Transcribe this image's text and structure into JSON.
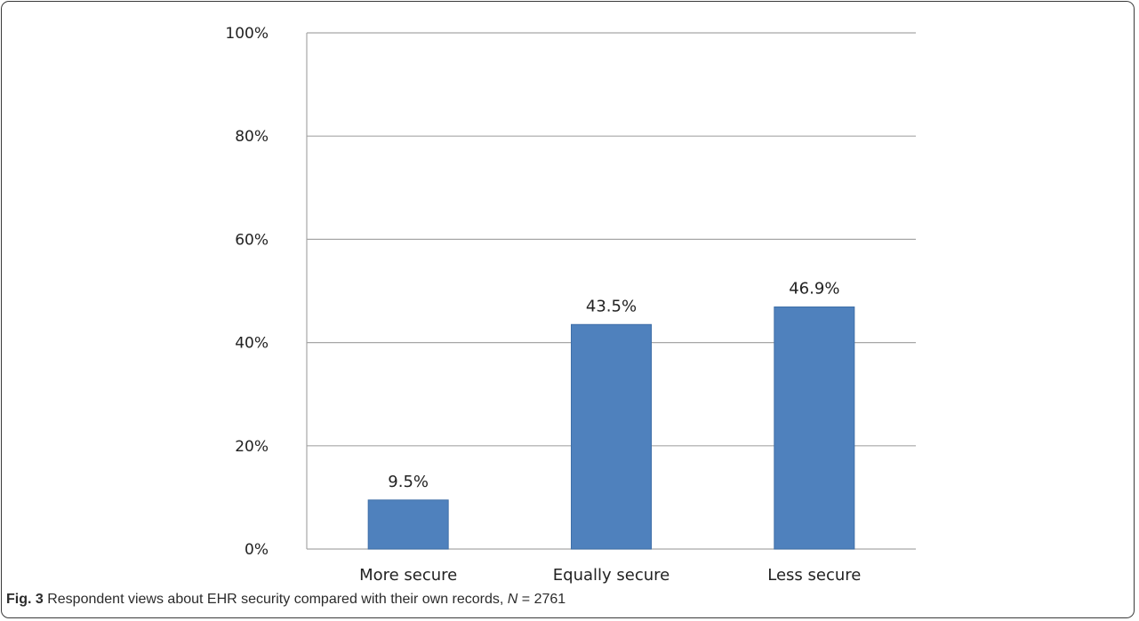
{
  "chart_data": {
    "type": "bar",
    "categories": [
      "More secure",
      "Equally secure",
      "Less secure"
    ],
    "values": [
      9.5,
      43.5,
      46.9
    ],
    "value_labels": [
      "9.5%",
      "43.5%",
      "46.9%"
    ],
    "title": "",
    "xlabel": "",
    "ylabel": "",
    "ylim": [
      0,
      100
    ],
    "yticks": [
      0,
      20,
      40,
      60,
      80,
      100
    ],
    "ytick_labels": [
      "0%",
      "20%",
      "40%",
      "60%",
      "80%",
      "100%"
    ],
    "grid": true,
    "legend": "none",
    "bar_color": "#4f81bd",
    "gridline_color": "#a6a6a6"
  },
  "caption": {
    "label": "Fig. 3",
    "text_before": " Respondent views about EHR security compared with their own records, ",
    "n_symbol": "N",
    "text_after": " = 2761"
  }
}
